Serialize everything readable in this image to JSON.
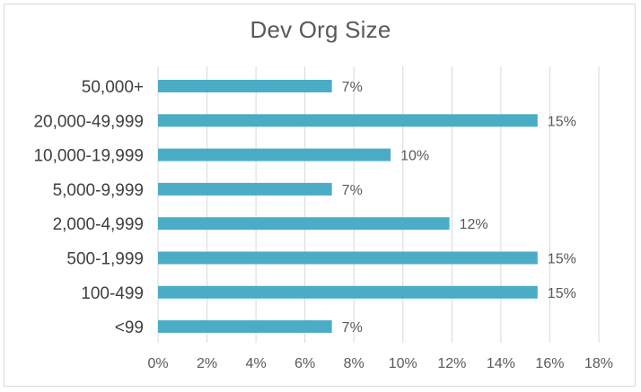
{
  "chart_data": {
    "type": "bar",
    "orientation": "horizontal",
    "title": "Dev Org Size",
    "xlabel": "",
    "ylabel": "",
    "categories": [
      "50,000+",
      "20,000-49,999",
      "10,000-19,999",
      "5,000-9,999",
      "2,000-4,999",
      "500-1,999",
      "100-499",
      "<99"
    ],
    "values": [
      7.1,
      15.5,
      9.5,
      7.1,
      11.9,
      15.5,
      15.5,
      7.1
    ],
    "data_labels": [
      "7%",
      "15%",
      "10%",
      "7%",
      "12%",
      "15%",
      "15%",
      "7%"
    ],
    "xlim": [
      0,
      18
    ],
    "xticks": [
      0,
      2,
      4,
      6,
      8,
      10,
      12,
      14,
      16,
      18
    ],
    "xtick_labels": [
      "0%",
      "2%",
      "4%",
      "6%",
      "8%",
      "10%",
      "12%",
      "14%",
      "16%",
      "18%"
    ],
    "grid": "vertical",
    "legend": "none",
    "colors": {
      "bar": "#4bacc6",
      "grid": "#d9d9d9",
      "text": "#595959",
      "category_text": "#404040"
    }
  }
}
